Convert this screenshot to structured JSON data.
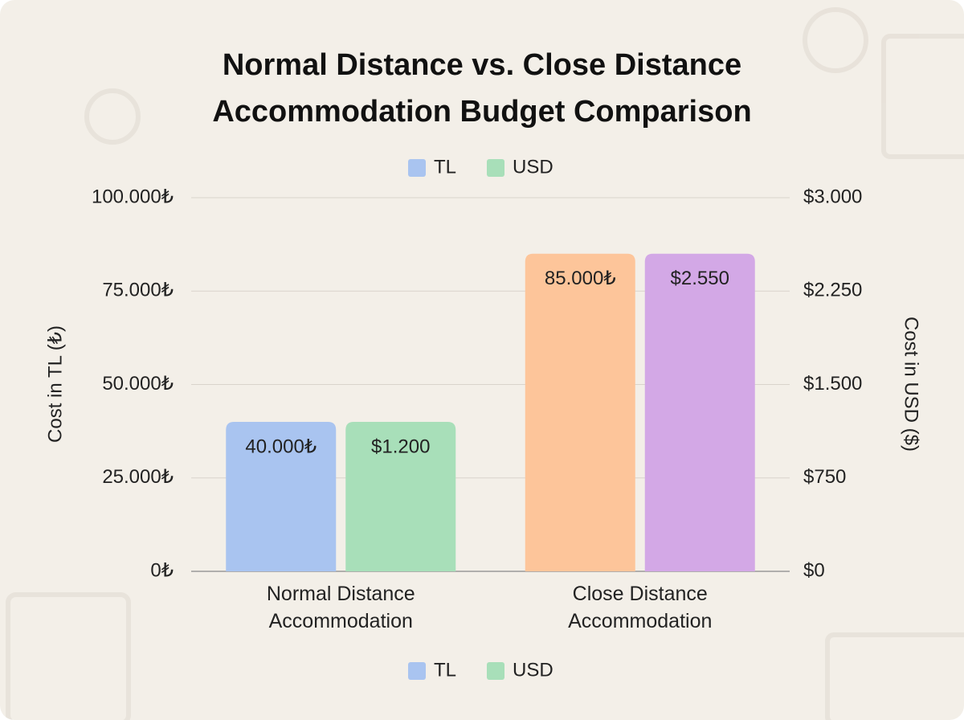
{
  "chart_data": {
    "type": "bar",
    "title": "Normal Distance vs. Close Distance Accommodation Budget Comparison",
    "categories": [
      "Normal Distance Accommodation",
      "Close Distance Accommodation"
    ],
    "series": [
      {
        "name": "TL",
        "color": "#a9c4f0",
        "colors": [
          "#a9c4f0",
          "#fdc59a"
        ],
        "values": [
          40000,
          85000
        ],
        "value_labels": [
          "40.000₺",
          "85.000₺"
        ]
      },
      {
        "name": "USD",
        "color": "#a8dfb9",
        "colors": [
          "#a8dfb9",
          "#d3a8e6"
        ],
        "values": [
          1200,
          2550
        ],
        "value_labels": [
          "$1.200",
          "$2.550"
        ],
        "axis": "y2"
      }
    ],
    "ylabel": "Cost in TL (₺)",
    "y2label": "Cost in USD ($)",
    "ylim": [
      0,
      100000
    ],
    "yticks": [
      {
        "value": 0,
        "label": "0₺"
      },
      {
        "value": 25000,
        "label": "25.000₺"
      },
      {
        "value": 50000,
        "label": "50.000₺"
      },
      {
        "value": 75000,
        "label": "75.000₺"
      },
      {
        "value": 100000,
        "label": "100.000₺"
      }
    ],
    "y2lim": [
      0,
      3000
    ],
    "y2ticks": [
      {
        "value": 0,
        "label": "$0"
      },
      {
        "value": 750,
        "label": "$750"
      },
      {
        "value": 1500,
        "label": "$1.500"
      },
      {
        "value": 2250,
        "label": "$2.250"
      },
      {
        "value": 3000,
        "label": "$3.000"
      }
    ],
    "grid": true
  }
}
